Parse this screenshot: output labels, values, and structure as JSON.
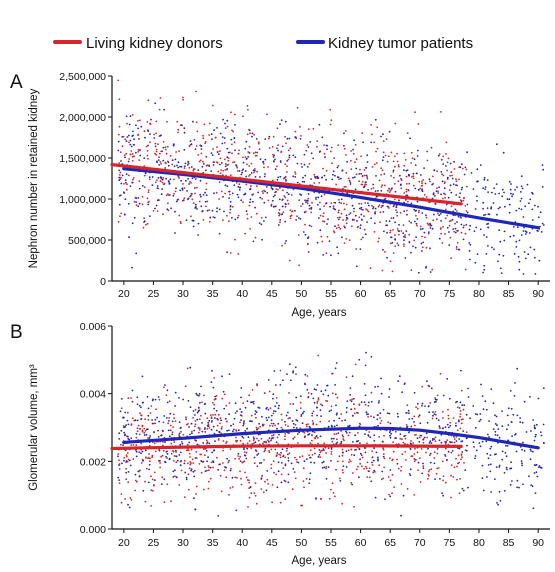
{
  "legend": {
    "donors": "Living kidney donors",
    "tumor": "Kidney tumor patients",
    "colors": {
      "donors": "#d6262b",
      "tumor": "#1e27b8"
    }
  },
  "chart_data": [
    {
      "panel": "A",
      "type": "scatter",
      "xlabel": "Age, years",
      "ylabel": "Nephron number in retained kidney",
      "xlim": [
        18,
        92
      ],
      "ylim": [
        0,
        2500000
      ],
      "xticks": [
        20,
        25,
        30,
        35,
        40,
        45,
        50,
        55,
        60,
        65,
        70,
        75,
        80,
        85,
        90
      ],
      "yticks": [
        0,
        500000,
        1000000,
        1500000,
        2000000,
        2500000
      ],
      "ytick_labels": [
        "0",
        "500,000",
        "1,000,000",
        "1,500,000",
        "2,000,000",
        "2,500,000"
      ],
      "grid": false,
      "legend_position": "top",
      "series": [
        {
          "name": "Living kidney donors",
          "color": "#d6262b",
          "scatter_x_range": [
            19,
            78
          ],
          "scatter_y_range": [
            100000,
            2500000
          ],
          "trend_line": {
            "x": [
              18,
              77
            ],
            "y": [
              1420000,
              940000
            ]
          }
        },
        {
          "name": "Kidney tumor patients",
          "color": "#1e27b8",
          "scatter_x_range": [
            19,
            91
          ],
          "scatter_y_range": [
            80000,
            2450000
          ],
          "trend_line": {
            "x": [
              20,
              30,
              40,
              50,
              60,
              70,
              80,
              90
            ],
            "y": [
              1370000,
              1300000,
              1220000,
              1130000,
              1020000,
              900000,
              770000,
              650000
            ]
          }
        }
      ]
    },
    {
      "panel": "B",
      "type": "scatter",
      "xlabel": "Age, years",
      "ylabel": "Glomerular volume, mm³",
      "xlim": [
        18,
        92
      ],
      "ylim": [
        0,
        0.006
      ],
      "xticks": [
        20,
        25,
        30,
        35,
        40,
        45,
        50,
        55,
        60,
        65,
        70,
        75,
        80,
        85,
        90
      ],
      "yticks": [
        0,
        0.002,
        0.004,
        0.006
      ],
      "ytick_labels": [
        "0.000",
        "0.002",
        "0.004",
        "0.006"
      ],
      "grid": false,
      "series": [
        {
          "name": "Living kidney donors",
          "color": "#d6262b",
          "scatter_x_range": [
            19,
            78
          ],
          "scatter_y_range": [
            0.0005,
            0.0058
          ],
          "trend_line": {
            "x": [
              18,
              30,
              40,
              50,
              60,
              70,
              77
            ],
            "y": [
              0.00238,
              0.00242,
              0.00245,
              0.00246,
              0.00246,
              0.00245,
              0.00244
            ]
          }
        },
        {
          "name": "Kidney tumor patients",
          "color": "#1e27b8",
          "scatter_x_range": [
            19,
            91
          ],
          "scatter_y_range": [
            0.0003,
            0.006
          ],
          "trend_line": {
            "x": [
              20,
              30,
              40,
              50,
              60,
              65,
              70,
              75,
              80,
              90
            ],
            "y": [
              0.00256,
              0.00268,
              0.00282,
              0.00292,
              0.00298,
              0.00297,
              0.00292,
              0.00282,
              0.0027,
              0.0024
            ]
          }
        }
      ]
    }
  ]
}
